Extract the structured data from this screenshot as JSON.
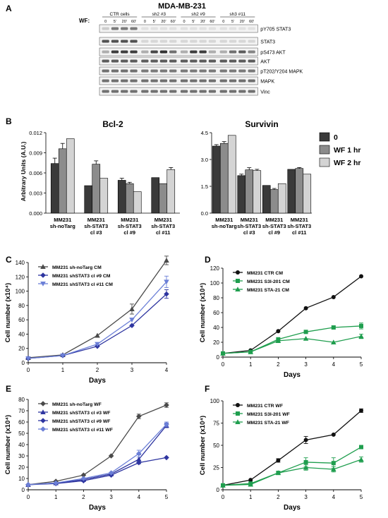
{
  "figure_title": "MDA-MB-231",
  "panels": {
    "A": "A",
    "B": "B",
    "C": "C",
    "D": "D",
    "E": "E",
    "F": "F"
  },
  "blot": {
    "wf_label": "WF:",
    "groups": [
      "CTR cells",
      "sh2 #3",
      "sh2 #9",
      "sh3 #11"
    ],
    "timepoints": [
      "0",
      "5'",
      "20'",
      "60'"
    ],
    "rows": [
      {
        "label": "pY705 STAT3",
        "intensity": [
          0.15,
          0.55,
          0.55,
          0.55,
          0.05,
          0.05,
          0.05,
          0.05,
          0.05,
          0.05,
          0.05,
          0.05,
          0.05,
          0.05,
          0.05,
          0.05
        ]
      },
      {
        "label": "STAT3",
        "intensity": [
          0.75,
          0.75,
          0.75,
          0.75,
          0.1,
          0.1,
          0.1,
          0.1,
          0.1,
          0.1,
          0.1,
          0.1,
          0.1,
          0.1,
          0.1,
          0.1
        ]
      },
      {
        "label": "pS473 AKT",
        "intensity": [
          0.3,
          0.85,
          0.85,
          0.85,
          0.3,
          0.8,
          0.9,
          0.6,
          0.3,
          0.85,
          0.85,
          0.3,
          0.3,
          0.6,
          0.7,
          0.5
        ]
      },
      {
        "label": "AKT",
        "intensity": [
          0.7,
          0.7,
          0.7,
          0.7,
          0.7,
          0.7,
          0.7,
          0.7,
          0.7,
          0.7,
          0.7,
          0.7,
          0.7,
          0.7,
          0.7,
          0.7
        ]
      },
      {
        "label": "pT202/Y204 MAPK",
        "intensity": [
          0.6,
          0.6,
          0.6,
          0.6,
          0.55,
          0.55,
          0.55,
          0.55,
          0.55,
          0.55,
          0.55,
          0.55,
          0.55,
          0.55,
          0.55,
          0.55
        ]
      },
      {
        "label": "MAPK",
        "intensity": [
          0.6,
          0.6,
          0.6,
          0.6,
          0.6,
          0.6,
          0.6,
          0.6,
          0.6,
          0.6,
          0.6,
          0.6,
          0.6,
          0.6,
          0.6,
          0.6
        ]
      },
      {
        "label": "Vinc",
        "intensity": [
          0.6,
          0.6,
          0.6,
          0.6,
          0.6,
          0.6,
          0.6,
          0.6,
          0.6,
          0.6,
          0.6,
          0.6,
          0.6,
          0.6,
          0.6,
          0.6
        ]
      }
    ]
  },
  "chart_data": [
    {
      "id": "B-bcl2",
      "type": "bar",
      "title": "Bcl-2",
      "ylabel": "Arbitrary Units (A.U.)",
      "ylim": [
        0,
        0.012
      ],
      "yticks": [
        "0.000",
        "0.003",
        "0.006",
        "0.009",
        "0.012"
      ],
      "categories": [
        [
          "MM231",
          "sh-noTarg"
        ],
        [
          "MM231",
          "sh-STAT3",
          "cl #3"
        ],
        [
          "MM231",
          "sh-STAT3",
          "cl #9"
        ],
        [
          "MM231",
          "sh-STAT3",
          "cl #11"
        ]
      ],
      "series": [
        {
          "name": "0",
          "color": "#3a3a3a",
          "values": [
            0.0074,
            0.0041,
            0.0049,
            0.0053
          ],
          "err": [
            0.0008,
            0,
            0.0003,
            0
          ]
        },
        {
          "name": "WF 1 hr",
          "color": "#8c8c8c",
          "values": [
            0.0096,
            0.0073,
            0.0044,
            0.0044
          ],
          "err": [
            0.0008,
            0.0005,
            0.0002,
            0
          ]
        },
        {
          "name": "WF 2 hr",
          "color": "#d4d4d4",
          "values": [
            0.0111,
            0.0052,
            0.0032,
            0.0065
          ],
          "err": [
            0,
            0,
            0,
            0.0003
          ]
        }
      ]
    },
    {
      "id": "B-survivin",
      "type": "bar",
      "title": "Survivin",
      "ylabel": "",
      "ylim": [
        0,
        4.5
      ],
      "yticks": [
        "0.0",
        "1.5",
        "3.0",
        "4.5"
      ],
      "categories": [
        [
          "MM231",
          "sh-noTarg"
        ],
        [
          "MM231",
          "sh-STAT3",
          "cl #3"
        ],
        [
          "MM231",
          "sh-STAT3",
          "cl #9"
        ],
        [
          "MM231",
          "sh-STAT3",
          "cl #11"
        ]
      ],
      "legend": [
        "0",
        "WF 1 hr",
        "WF 2 hr"
      ],
      "series": [
        {
          "name": "0",
          "color": "#3a3a3a",
          "values": [
            3.75,
            2.1,
            1.55,
            2.45
          ],
          "err": [
            0.08,
            0.08,
            0,
            0
          ]
        },
        {
          "name": "WF 1 hr",
          "color": "#8c8c8c",
          "values": [
            3.9,
            2.42,
            1.32,
            2.5
          ],
          "err": [
            0.1,
            0.12,
            0.06,
            0.05
          ]
        },
        {
          "name": "WF 2 hr",
          "color": "#d4d4d4",
          "values": [
            4.35,
            2.38,
            1.65,
            2.18
          ],
          "err": [
            0,
            0.07,
            0,
            0
          ]
        }
      ]
    },
    {
      "id": "C",
      "type": "line",
      "xlabel": "Days",
      "ylabel": "Cell number (x10⁴)",
      "xlim": [
        0,
        4
      ],
      "ylim": [
        0,
        140
      ],
      "xticks": [
        0,
        1,
        2,
        3,
        4
      ],
      "yticks": [
        0,
        20,
        40,
        60,
        80,
        100,
        120,
        140
      ],
      "series": [
        {
          "name": "MM231 sh-noTarg CM",
          "color": "#4a4a4a",
          "marker": "triangle",
          "x": [
            0,
            1,
            2,
            3,
            4
          ],
          "y": [
            7,
            11,
            38,
            75,
            143
          ],
          "err": [
            0,
            0,
            0,
            7,
            6
          ]
        },
        {
          "name": "MM231 shSTAT3 cl #9 CM",
          "color": "#2e35a0",
          "marker": "diamond",
          "x": [
            0,
            1,
            2,
            3,
            4
          ],
          "y": [
            6,
            10,
            23,
            52,
            96
          ],
          "err": [
            0,
            0,
            0,
            0,
            6
          ]
        },
        {
          "name": "MM231 shSTAT3 cl #11 CM",
          "color": "#6b7fd7",
          "marker": "triangle-down",
          "x": [
            0,
            1,
            2,
            3,
            4
          ],
          "y": [
            6,
            10,
            26,
            60,
            113
          ],
          "err": [
            0,
            0,
            0,
            0,
            8
          ]
        }
      ]
    },
    {
      "id": "D",
      "type": "line",
      "xlabel": "Days",
      "ylabel": "Cell number (x10⁴)",
      "xlim": [
        0,
        5
      ],
      "ylim": [
        0,
        120
      ],
      "xticks": [
        0,
        1,
        2,
        3,
        4,
        5
      ],
      "yticks": [
        0,
        20,
        40,
        60,
        80,
        100,
        120
      ],
      "series": [
        {
          "name": "MM231 CTR CM",
          "color": "#111111",
          "marker": "circle",
          "x": [
            0,
            1,
            2,
            3,
            4,
            5
          ],
          "y": [
            5,
            9,
            35,
            66,
            81,
            109
          ],
          "err": [
            0,
            0,
            0,
            0,
            0,
            0
          ]
        },
        {
          "name": "MM231 S3I-201 CM",
          "color": "#1f9e4e",
          "marker": "square",
          "x": [
            0,
            1,
            2,
            3,
            4,
            5
          ],
          "y": [
            5,
            7,
            24,
            34,
            40,
            42
          ],
          "err": [
            0,
            0,
            0,
            0,
            2,
            4
          ]
        },
        {
          "name": "MM231 STA-21 CM",
          "color": "#1f9e4e",
          "marker": "triangle",
          "x": [
            0,
            1,
            2,
            3,
            4,
            5
          ],
          "y": [
            5,
            7,
            22,
            25,
            20,
            28
          ],
          "err": [
            0,
            0,
            0,
            0,
            0,
            3
          ]
        }
      ]
    },
    {
      "id": "E",
      "type": "line",
      "xlabel": "Days",
      "ylabel": "Cell number (x10⁴)",
      "xlim": [
        0,
        5
      ],
      "ylim": [
        0,
        80
      ],
      "xticks": [
        0,
        1,
        2,
        3,
        4,
        5
      ],
      "yticks": [
        0,
        10,
        20,
        30,
        40,
        50,
        60,
        70,
        80
      ],
      "series": [
        {
          "name": "MM231 sh-noTarg WF",
          "color": "#4a4a4a",
          "marker": "diamond",
          "x": [
            0,
            1,
            2,
            3,
            4,
            5
          ],
          "y": [
            4.5,
            7.5,
            13,
            30,
            65,
            75
          ],
          "err": [
            0,
            0,
            0,
            0,
            2,
            2
          ]
        },
        {
          "name": "MM231 shSTAT3 cl #3 WF",
          "color": "#2e35a0",
          "marker": "triangle",
          "x": [
            0,
            1,
            2,
            3,
            4,
            5
          ],
          "y": [
            4.5,
            6,
            9,
            14,
            27,
            57
          ],
          "err": [
            0,
            0,
            0,
            0,
            4,
            2
          ]
        },
        {
          "name": "MM231 shSTAT3 cl #9 WF",
          "color": "#2e35a0",
          "marker": "diamond",
          "x": [
            0,
            1,
            2,
            3,
            4,
            5
          ],
          "y": [
            4.5,
            5.5,
            8,
            13,
            24,
            28.5
          ],
          "err": [
            0,
            0,
            0,
            0,
            0,
            0
          ]
        },
        {
          "name": "MM231 shSTAT3 cl #11 WF",
          "color": "#6b7fd7",
          "marker": "diamond",
          "x": [
            0,
            1,
            2,
            3,
            4,
            5
          ],
          "y": [
            4.5,
            6,
            10,
            15,
            32,
            58
          ],
          "err": [
            0,
            0,
            0,
            0,
            3,
            2
          ]
        }
      ]
    },
    {
      "id": "F",
      "type": "line",
      "xlabel": "Days",
      "ylabel": "Cell number (x10⁴)",
      "xlim": [
        0,
        5
      ],
      "ylim": [
        0,
        100
      ],
      "xticks": [
        0,
        1,
        2,
        3,
        4,
        5
      ],
      "yticks": [
        0,
        25,
        50,
        75,
        100
      ],
      "series": [
        {
          "name": "MM231 CTR WF",
          "color": "#111111",
          "marker": "circle",
          "x": [
            0,
            1,
            2,
            3,
            4,
            5
          ],
          "y": [
            5,
            11,
            33,
            56,
            62,
            89
          ],
          "err": [
            0,
            0,
            2,
            4,
            0,
            2
          ]
        },
        {
          "name": "MM231 S3I-201 WF",
          "color": "#1f9e4e",
          "marker": "square",
          "x": [
            0,
            1,
            2,
            3,
            4,
            5
          ],
          "y": [
            5,
            7,
            19,
            31,
            30,
            48
          ],
          "err": [
            0,
            0,
            0,
            5,
            6,
            2
          ]
        },
        {
          "name": "MM231 STA-21 WF",
          "color": "#1f9e4e",
          "marker": "triangle",
          "x": [
            0,
            1,
            2,
            3,
            4,
            5
          ],
          "y": [
            5,
            6,
            19,
            25,
            23,
            34
          ],
          "err": [
            0,
            0,
            0,
            3,
            3,
            3
          ]
        }
      ]
    }
  ]
}
